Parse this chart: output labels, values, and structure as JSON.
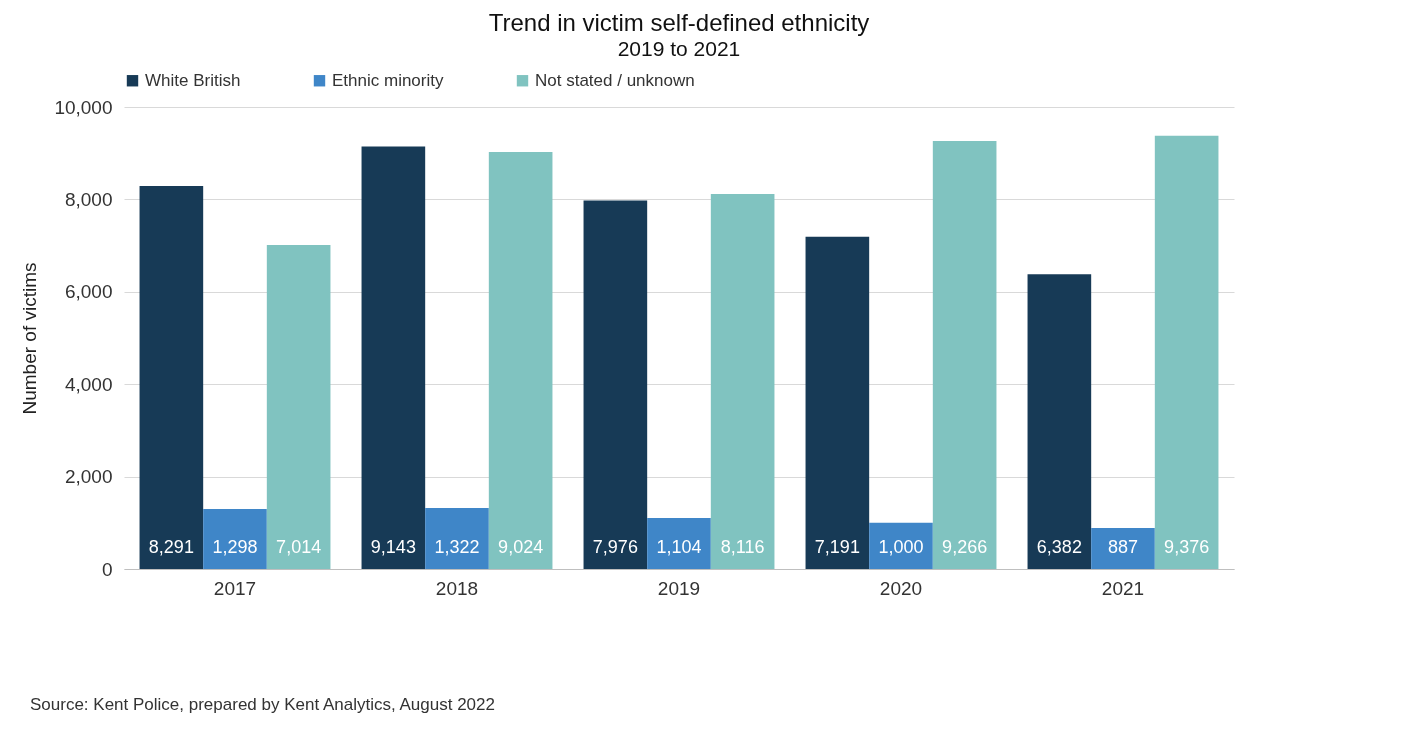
{
  "chart_data": {
    "type": "bar",
    "title": "Trend in victim self-defined ethnicity",
    "subtitle": "2019 to 2021",
    "ylabel": "Number of victims",
    "categories": [
      "2017",
      "2018",
      "2019",
      "2020",
      "2021"
    ],
    "series": [
      {
        "name": "White British",
        "color": "#173a56",
        "values": [
          8291,
          9143,
          7976,
          7191,
          6382
        ],
        "value_labels": [
          "8,291",
          "9,143",
          "7,976",
          "7,191",
          "6,382"
        ]
      },
      {
        "name": "Ethnic minority",
        "color": "#3f86c8",
        "values": [
          1298,
          1322,
          1104,
          1000,
          887
        ],
        "value_labels": [
          "1,298",
          "1,322",
          "1,104",
          "1,000",
          "887"
        ]
      },
      {
        "name": "Not stated / unknown",
        "color": "#80c3c0",
        "values": [
          7014,
          9024,
          8116,
          9266,
          9376
        ],
        "value_labels": [
          "7,014",
          "9,024",
          "8,116",
          "9,266",
          "9,376"
        ]
      }
    ],
    "ylim": [
      0,
      10000
    ],
    "yticks": [
      0,
      {
        "value": 2000,
        "label": "2,000"
      },
      {
        "value": 4000,
        "label": "4,000"
      },
      {
        "value": 6000,
        "label": "6,000"
      },
      {
        "value": 8000,
        "label": "8,000"
      },
      {
        "value": 10000,
        "label": "10,000"
      }
    ],
    "grid": "y",
    "legend": "top",
    "annotations": [
      "Source: Kent Police, prepared by Kent Analytics, August 2022"
    ]
  }
}
